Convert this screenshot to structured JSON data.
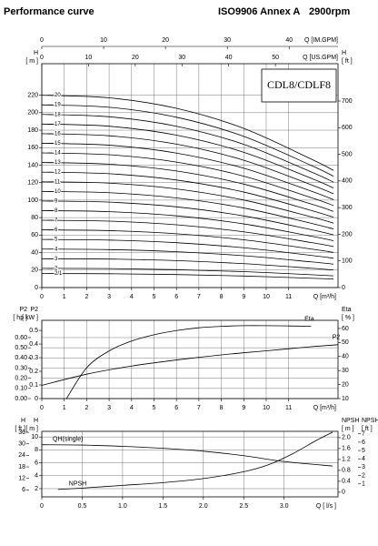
{
  "header": {
    "title": "Performance curve",
    "standard": "ISO9906 Annex A",
    "speed": "2900rpm"
  },
  "chart_data": [
    {
      "type": "line",
      "model": "CDL8/CDLF8",
      "color": "#000000",
      "grid": true,
      "x_label": "Q [m³/h]",
      "xlim": [
        0,
        13.2
      ],
      "xticks": [
        0,
        1,
        2,
        3,
        4,
        5,
        6,
        7,
        8,
        9,
        10,
        11
      ],
      "x2_label": "Q [IM.GPM]",
      "x2lim": [
        0,
        47.9
      ],
      "x2ticks": [
        0,
        10,
        20,
        30,
        40
      ],
      "x3_label": "Q [US.GPM]",
      "x3lim": [
        0,
        63.4
      ],
      "x3ticks": [
        0,
        10,
        20,
        30,
        40,
        50
      ],
      "y_label": "H",
      "y_unit": "[ m ]",
      "ylim": [
        0,
        256
      ],
      "yticks": [
        0,
        20,
        40,
        60,
        80,
        100,
        120,
        140,
        160,
        180,
        200,
        220
      ],
      "y2_label": "H",
      "y2_unit": "[ ft ]",
      "y2lim": [
        0,
        840
      ],
      "y2ticks": [
        0,
        100,
        200,
        300,
        400,
        500,
        600,
        700
      ],
      "x": [
        0,
        3,
        6,
        9,
        12,
        13
      ],
      "series": [
        {
          "name": "2/1",
          "values": [
            16,
            15.8,
            14.9,
            13.2,
            10.7,
            9.7
          ]
        },
        {
          "name": "2",
          "values": [
            22,
            21.7,
            20.5,
            18.2,
            14.7,
            13.4
          ]
        },
        {
          "name": "3",
          "values": [
            33,
            32.6,
            30.8,
            27.3,
            22.1,
            20.1
          ]
        },
        {
          "name": "4",
          "values": [
            44,
            43.4,
            41,
            36.4,
            29.4,
            26.8
          ]
        },
        {
          "name": "5",
          "values": [
            55,
            54.3,
            51.3,
            45.5,
            36.8,
            33.5
          ]
        },
        {
          "name": "6",
          "values": [
            66,
            65.1,
            61.5,
            54.6,
            44.1,
            40.2
          ]
        },
        {
          "name": "7",
          "values": [
            77,
            76,
            71.8,
            63.7,
            51.5,
            46.9
          ]
        },
        {
          "name": "8",
          "values": [
            88,
            86.8,
            82,
            72.8,
            58.8,
            53.6
          ]
        },
        {
          "name": "9",
          "values": [
            99,
            97.7,
            92.3,
            81.9,
            66.2,
            60.3
          ]
        },
        {
          "name": "10",
          "values": [
            110,
            108.5,
            102.5,
            91,
            73.5,
            67
          ]
        },
        {
          "name": "11",
          "values": [
            121,
            119.4,
            112.8,
            100.1,
            80.9,
            73.7
          ]
        },
        {
          "name": "12",
          "values": [
            132,
            130.2,
            123,
            109.2,
            88.2,
            80.4
          ]
        },
        {
          "name": "13",
          "values": [
            143,
            141.1,
            133.3,
            118.3,
            95.6,
            87.1
          ]
        },
        {
          "name": "14",
          "values": [
            154,
            151.9,
            143.5,
            127.4,
            102.9,
            93.8
          ]
        },
        {
          "name": "15",
          "values": [
            165,
            162.8,
            153.8,
            136.5,
            110.3,
            100.5
          ]
        },
        {
          "name": "16",
          "values": [
            176,
            173.6,
            164,
            145.6,
            117.6,
            107.2
          ]
        },
        {
          "name": "17",
          "values": [
            187,
            184.5,
            174.3,
            154.7,
            125,
            113.9
          ]
        },
        {
          "name": "18",
          "values": [
            198,
            195.3,
            184.5,
            163.8,
            132.3,
            120.6
          ]
        },
        {
          "name": "19",
          "values": [
            209,
            206.2,
            194.8,
            172.9,
            139.7,
            127.3
          ]
        },
        {
          "name": "20",
          "values": [
            220,
            217,
            205,
            182,
            147,
            134
          ]
        }
      ]
    },
    {
      "type": "line",
      "color": "#000000",
      "grid": true,
      "x_label": "Q [m³/h]",
      "xlim": [
        0,
        13.2
      ],
      "xticks": [
        0,
        1,
        2,
        3,
        4,
        5,
        6,
        7,
        8,
        9,
        10,
        11
      ],
      "y_label": "P2",
      "y_unit": "[ hp ]",
      "ylim": [
        0,
        0.77
      ],
      "yticks": [
        {
          "value": 0,
          "label": "0.00"
        },
        {
          "value": 0.1,
          "label": "0.10"
        },
        {
          "value": 0.2,
          "label": "0.20"
        },
        {
          "value": 0.3,
          "label": "0.30"
        },
        {
          "value": 0.4,
          "label": "0.40"
        },
        {
          "value": 0.5,
          "label": "0.50"
        },
        {
          "value": 0.6,
          "label": "0.60"
        }
      ],
      "y3_label": "P2",
      "y3_unit": "[ kW ]",
      "y3lim": [
        0,
        0.574
      ],
      "y3ticks": [
        0,
        0.1,
        0.2,
        0.3,
        0.4,
        0.5
      ],
      "y2_label": "Eta",
      "y2_unit": "[ % ]",
      "y2lim": [
        10,
        65.8
      ],
      "y2ticks": [
        10,
        20,
        30,
        40,
        50,
        60
      ],
      "series": [
        {
          "name": "Eta",
          "axis": "y2",
          "x": [
            1.1,
            2,
            3,
            4,
            5,
            6,
            7,
            8,
            9,
            10,
            11,
            12
          ],
          "values": [
            10,
            32,
            44,
            51,
            55.5,
            58.5,
            60.5,
            61.5,
            62,
            62,
            61.8,
            61.5
          ]
        },
        {
          "name": "P2",
          "x": [
            0,
            2,
            4,
            6,
            8,
            10,
            12,
            13.2
          ],
          "values": [
            0.13,
            0.24,
            0.32,
            0.38,
            0.43,
            0.47,
            0.51,
            0.53
          ]
        }
      ]
    },
    {
      "type": "line",
      "color": "#000000",
      "grid": true,
      "x_label": "Q [ l/s ]",
      "xlim": [
        0,
        3.667
      ],
      "xticks": [
        0,
        0.5,
        {
          "value": 1,
          "label": "1.0"
        },
        1.5,
        {
          "value": 2,
          "label": "2.0"
        },
        2.5,
        {
          "value": 3,
          "label": "3.0"
        }
      ],
      "y3_label": "H",
      "y3_unit": "[ ft ]",
      "y3lim": [
        2.4,
        36.5
      ],
      "y3ticks": [
        6,
        12,
        18,
        24,
        30,
        36
      ],
      "y_label": "H",
      "y_unit": "[ m ]",
      "ylim": [
        0.73,
        10.87
      ],
      "yticks": [
        2,
        4,
        6,
        8,
        10
      ],
      "y2_label": "NPSH",
      "y2_unit": "[ m ]",
      "y2lim": [
        -0.17,
        2.23
      ],
      "y2ticks": [
        0,
        0.4,
        0.8,
        1.2,
        1.6,
        {
          "value": 2,
          "label": "2.0"
        }
      ],
      "y4_label": "NPSH",
      "y4_unit": "[ ft ]",
      "y4lim": [
        -0.56,
        7.3
      ],
      "y4ticks": [
        1,
        2,
        3,
        4,
        5,
        6,
        7
      ],
      "series": [
        {
          "name": "QH(single)",
          "x": [
            0,
            0.5,
            1,
            1.5,
            2,
            2.5,
            3,
            3.6
          ],
          "values": [
            8.8,
            8.75,
            8.55,
            8.25,
            7.8,
            7.1,
            6.2,
            5.5
          ]
        },
        {
          "name": "NPSH",
          "axis": "y2",
          "x": [
            0.2,
            0.5,
            1,
            1.5,
            2,
            2.5,
            2.8,
            3.1,
            3.4,
            3.6
          ],
          "values": [
            0.1,
            0.15,
            0.25,
            0.35,
            0.5,
            0.75,
            1,
            1.4,
            1.9,
            2.2
          ]
        }
      ]
    }
  ]
}
